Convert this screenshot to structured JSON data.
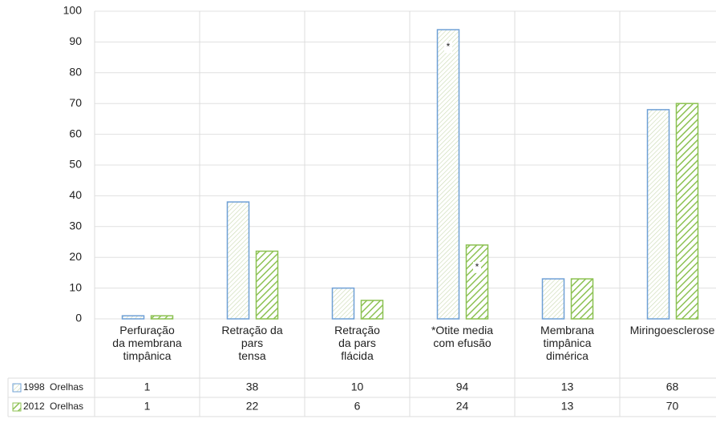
{
  "chart_data": {
    "type": "bar",
    "categories": [
      "Perfuração\nda membrana\ntimpânica",
      "Retração da\npars\ntensa",
      "Retração\nda pars\nflácida",
      "*Otite media\ncom efusão",
      "Membrana\ntimpânica\ndimérica",
      "Miringoesclerose"
    ],
    "series": [
      {
        "name": "1998 Orelhas",
        "color": "#6fa0d6",
        "values": [
          1,
          38,
          10,
          94,
          13,
          68
        ]
      },
      {
        "name": "2012 Orelhas",
        "color": "#8cc152",
        "values": [
          1,
          22,
          6,
          24,
          13,
          70
        ]
      }
    ],
    "bar_annotations": [
      {
        "series": 0,
        "index": 3,
        "text": "*"
      },
      {
        "series": 1,
        "index": 3,
        "text": "*"
      }
    ],
    "ylim": [
      0,
      100
    ],
    "yticks": [
      0,
      10,
      20,
      30,
      40,
      50,
      60,
      70,
      80,
      90,
      100
    ],
    "grid": true
  }
}
